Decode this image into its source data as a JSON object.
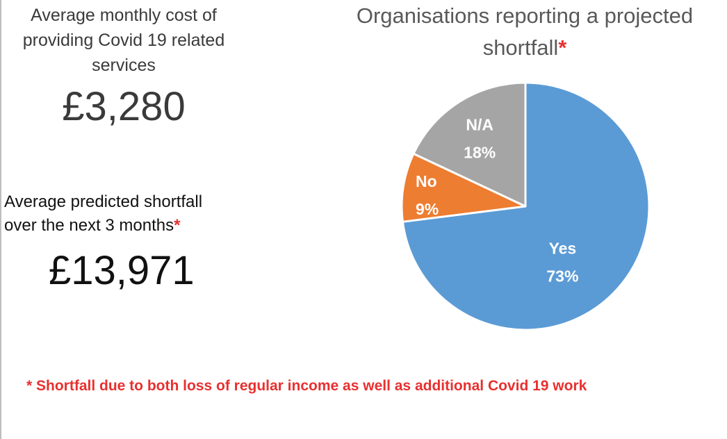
{
  "stats": [
    {
      "label_lines": [
        "Average monthly cost of",
        "providing Covid 19 related",
        "services"
      ],
      "value": "£3,280"
    },
    {
      "label_lines": [
        "Average predicted shortfall",
        "over the next 3 months"
      ],
      "label_marker": "*",
      "value": "£13,971"
    }
  ],
  "footnote": {
    "text": "* Shortfall due to both loss of regular income as well as additional Covid 19 work"
  },
  "colors": {
    "yes": "#5b9bd5",
    "no": "#ed7d31",
    "na": "#a5a5a5",
    "accent_red": "#e8302f"
  },
  "chart_data": {
    "type": "pie",
    "title_lines": [
      "Organisations reporting a projected",
      "shortfall"
    ],
    "title_marker": "*",
    "slices": [
      {
        "name": "Yes",
        "value": 73,
        "label": "73%",
        "color": "#5b9bd5"
      },
      {
        "name": "No",
        "value": 9,
        "label": "9%",
        "color": "#ed7d31"
      },
      {
        "name": "N/A",
        "value": 18,
        "label": "18%",
        "color": "#a5a5a5"
      }
    ],
    "legend": "none",
    "start_angle": "12 o'clock",
    "direction": "clockwise"
  }
}
